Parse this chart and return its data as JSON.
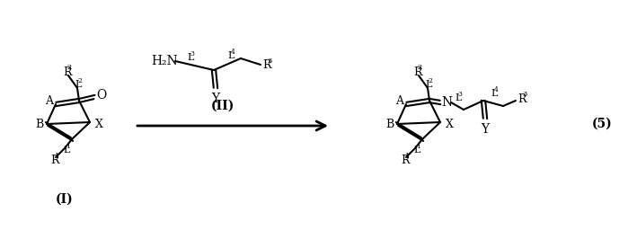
{
  "bg_color": "#ffffff",
  "figsize": [
    6.99,
    2.56
  ],
  "dpi": 100,
  "mol1_label": "(I)",
  "mol2_label": "(II)",
  "product_label": "(5)"
}
